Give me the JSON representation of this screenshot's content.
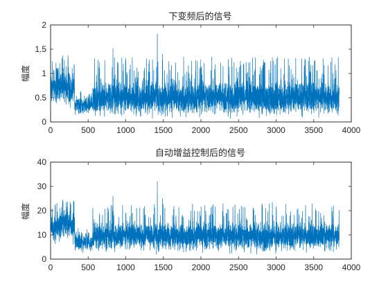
{
  "chart_data": [
    {
      "type": "line",
      "title": "下变频后的信号",
      "xlabel": "",
      "ylabel": "幅度",
      "xlim": [
        0,
        4000
      ],
      "ylim": [
        0,
        2
      ],
      "xticks": [
        "0",
        "500",
        "1000",
        "1500",
        "2000",
        "2500",
        "3000",
        "3500",
        "4000"
      ],
      "yticks": [
        "0",
        "0.5",
        "1",
        "1.5",
        "2"
      ],
      "grid": false,
      "line_color": "#0072BD",
      "n_samples": 3840,
      "series": [
        {
          "description": "dense noisy amplitude trace; values in data units",
          "segments": [
            {
              "x_start": 0,
              "x_end": 320,
              "baseline": 0.72,
              "spread": 0.3,
              "max_peak": 1.38
            },
            {
              "x_start": 320,
              "x_end": 560,
              "baseline": 0.35,
              "spread": 0.15,
              "max_peak": 0.65
            },
            {
              "x_start": 560,
              "x_end": 3840,
              "baseline": 0.5,
              "spread": 0.3,
              "max_peak": 1.35
            }
          ],
          "spikes": [
            {
              "x": 1420,
              "y": 1.82
            },
            {
              "x": 1490,
              "y": 1.4
            },
            {
              "x": 830,
              "y": 1.52
            },
            {
              "x": 160,
              "y": 1.37
            },
            {
              "x": 2950,
              "y": 1.33
            }
          ],
          "min_value": 0.02
        }
      ]
    },
    {
      "type": "line",
      "title": "自动增益控制后的信号",
      "xlabel": "",
      "ylabel": "幅度",
      "xlim": [
        0,
        4000
      ],
      "ylim": [
        0,
        40
      ],
      "xticks": [
        "0",
        "500",
        "1000",
        "1500",
        "2000",
        "2500",
        "3000",
        "3500",
        "4000"
      ],
      "yticks": [
        "0",
        "10",
        "20",
        "30",
        "40"
      ],
      "grid": false,
      "line_color": "#0072BD",
      "n_samples": 3840,
      "series": [
        {
          "description": "dense noisy amplitude trace; values in data units",
          "segments": [
            {
              "x_start": 0,
              "x_end": 320,
              "baseline": 14.0,
              "spread": 5.5,
              "max_peak": 24.5
            },
            {
              "x_start": 320,
              "x_end": 560,
              "baseline": 7.0,
              "spread": 3.0,
              "max_peak": 13.0
            },
            {
              "x_start": 560,
              "x_end": 3840,
              "baseline": 9.5,
              "spread": 5.0,
              "max_peak": 23.0
            }
          ],
          "spikes": [
            {
              "x": 1420,
              "y": 32.0
            },
            {
              "x": 830,
              "y": 26.0
            },
            {
              "x": 1490,
              "y": 25.0
            },
            {
              "x": 160,
              "y": 24.5
            },
            {
              "x": 2950,
              "y": 23.5
            }
          ],
          "min_value": 0.3
        }
      ]
    }
  ]
}
